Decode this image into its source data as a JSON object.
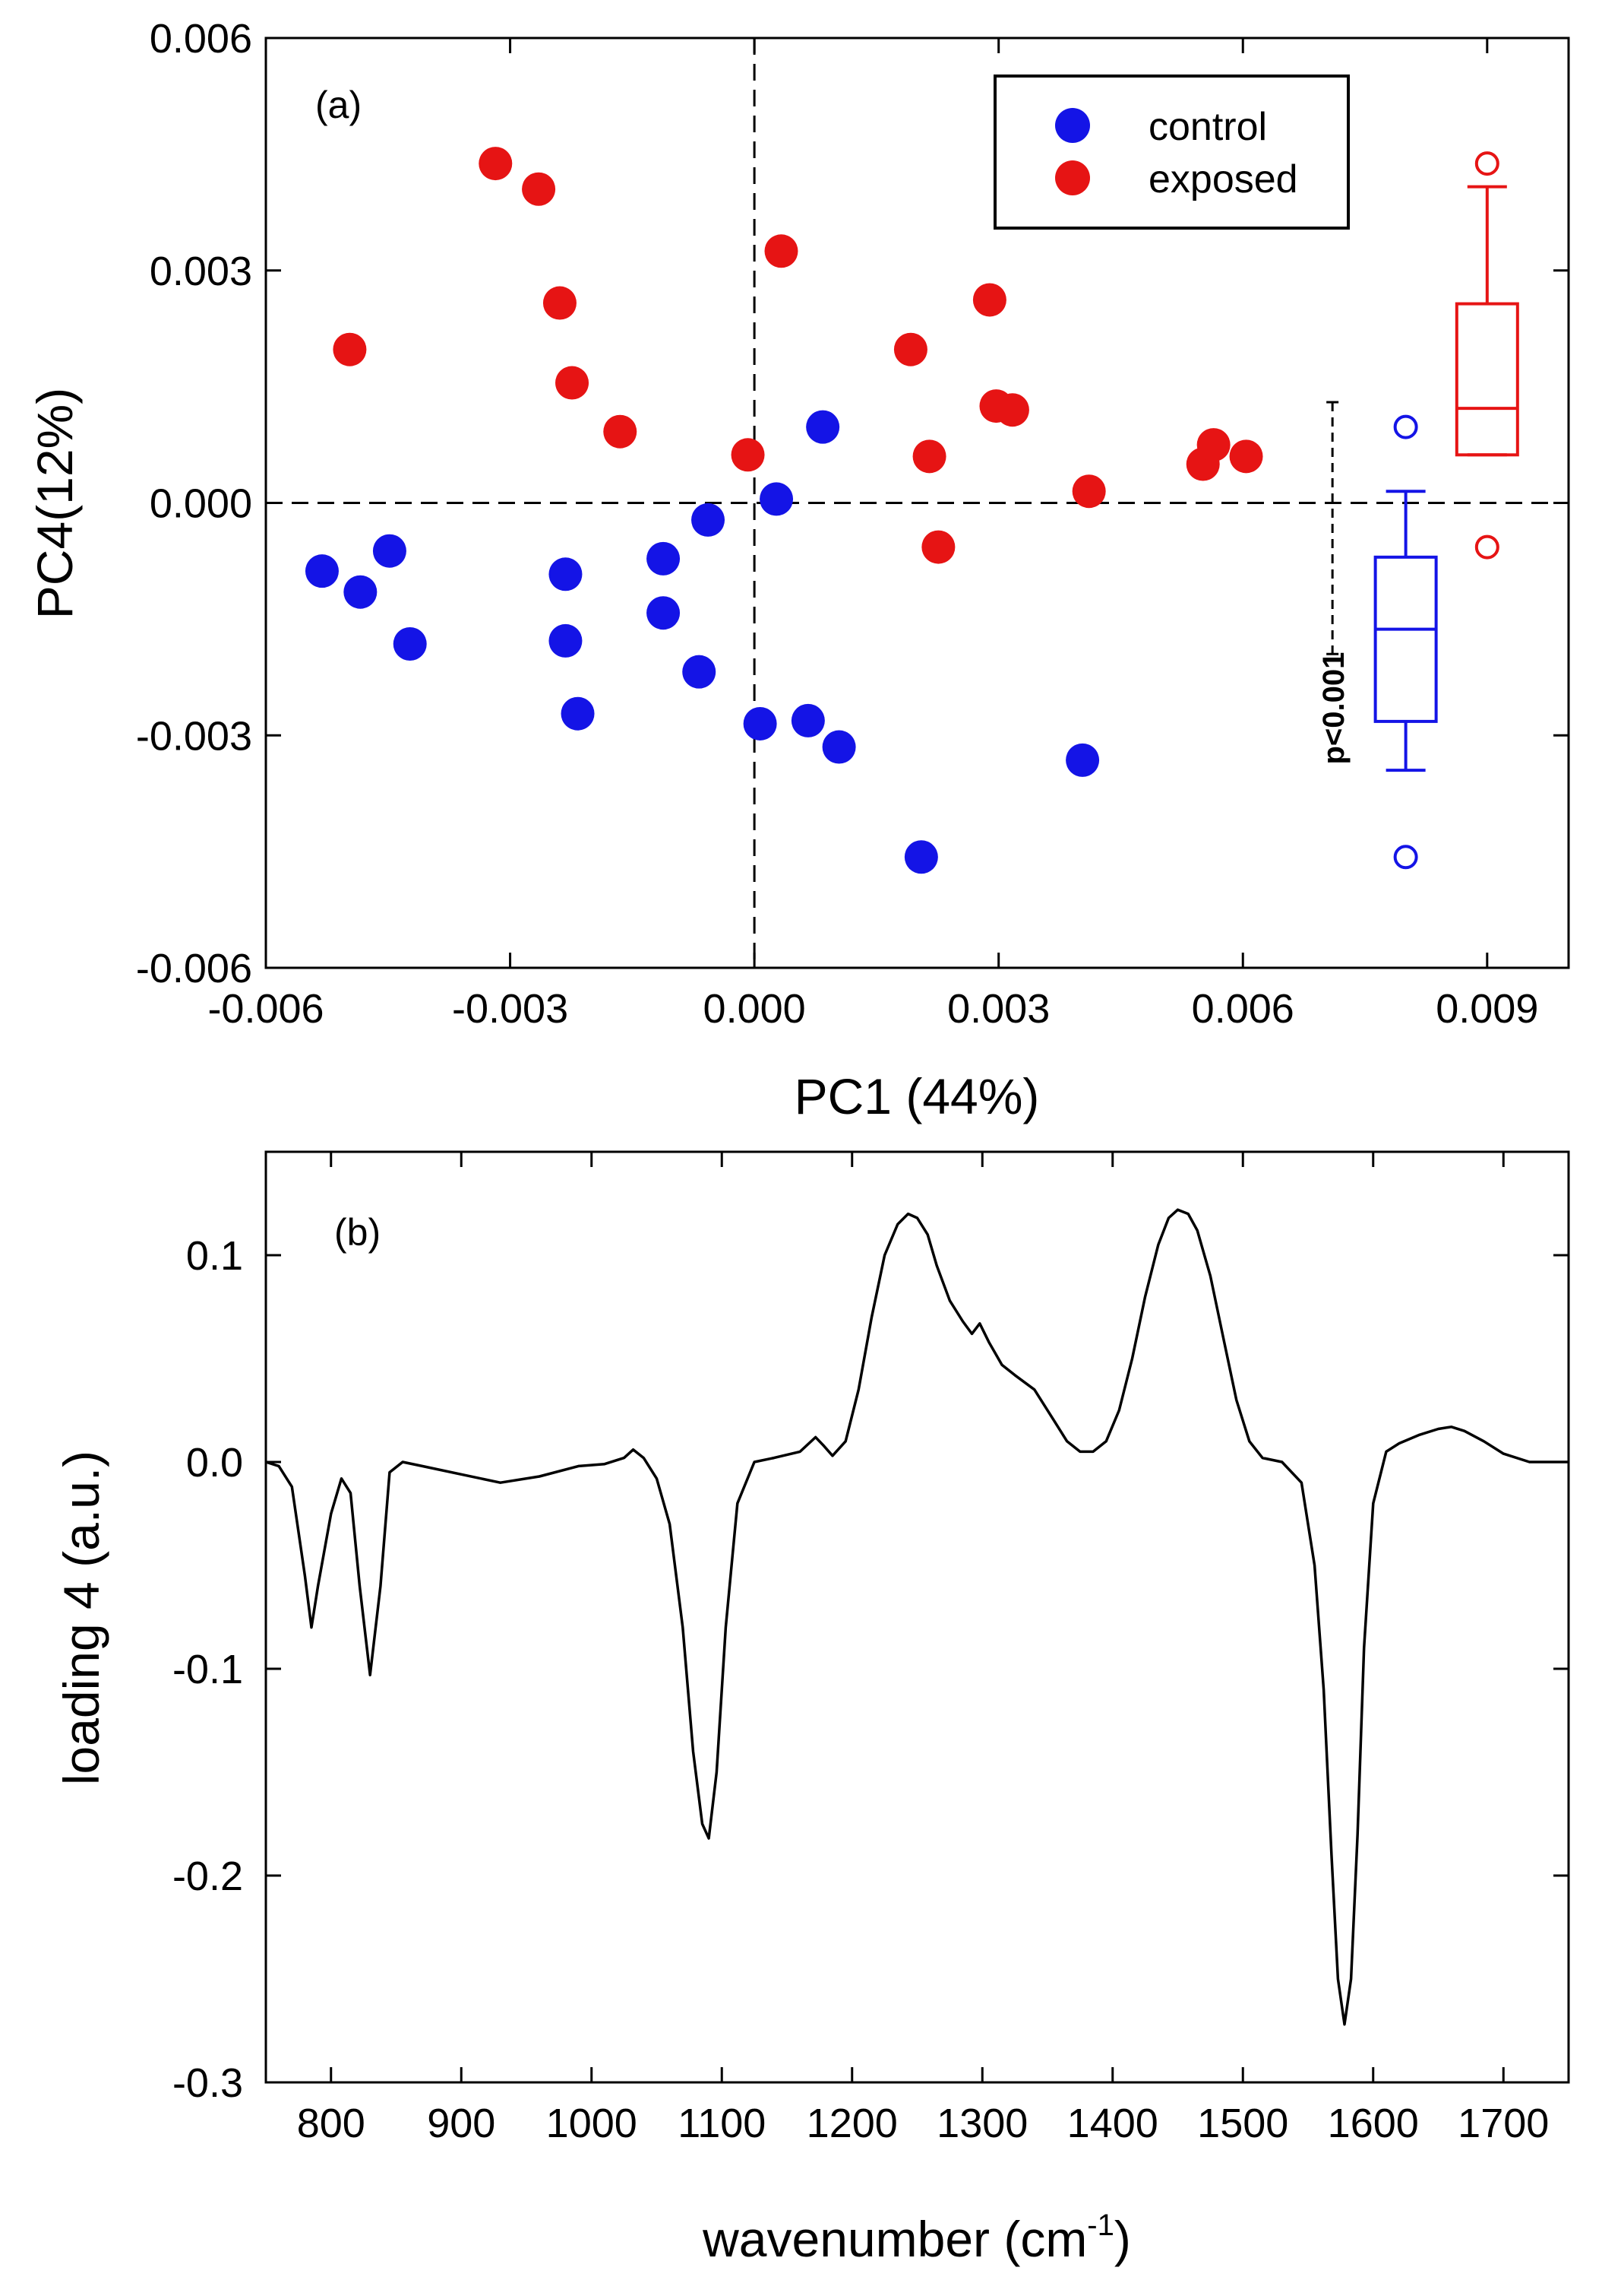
{
  "chart_data": [
    {
      "type": "scatter",
      "panel_label": "(a)",
      "xlabel": "PC1 (44%)",
      "ylabel": "PC4(12%)",
      "xlim": [
        -0.006,
        0.01
      ],
      "ylim": [
        -0.006,
        0.006
      ],
      "x_ticks": [
        -0.006,
        -0.003,
        0.0,
        0.003,
        0.006,
        0.009
      ],
      "x_tick_labels": [
        "-0.006",
        "-0.003",
        "0.000",
        "0.003",
        "0.006",
        "0.009"
      ],
      "y_ticks": [
        -0.006,
        -0.003,
        0.0,
        0.003,
        0.006
      ],
      "y_tick_labels": [
        "-0.006",
        "-0.003",
        "0.000",
        "0.003",
        "0.006"
      ],
      "reference_lines": {
        "x": 0.0,
        "y": 0.0,
        "style": "dashed"
      },
      "legend_position": "top-right",
      "series": [
        {
          "name": "control",
          "color": "#1414e6",
          "points": [
            [
              -0.00531,
              -0.00088
            ],
            [
              -0.00484,
              -0.00115
            ],
            [
              -0.00448,
              -0.00062
            ],
            [
              -0.00423,
              -0.00182
            ],
            [
              -0.00232,
              -0.00092
            ],
            [
              -0.00232,
              -0.00178
            ],
            [
              -0.00217,
              -0.00272
            ],
            [
              -0.00112,
              -0.00072
            ],
            [
              -0.00112,
              -0.00142
            ],
            [
              -0.00068,
              -0.00218
            ],
            [
              -0.00057,
              -0.00022
            ],
            [
              7e-05,
              -0.00285
            ],
            [
              0.00027,
              5e-05
            ],
            [
              0.00084,
              0.00098
            ],
            [
              0.00066,
              -0.00281
            ],
            [
              0.00104,
              -0.00315
            ],
            [
              0.00205,
              -0.00457
            ],
            [
              0.00403,
              -0.00332
            ]
          ]
        },
        {
          "name": "exposed",
          "color": "#e61414",
          "points": [
            [
              -0.00497,
              0.00198
            ],
            [
              -0.00318,
              0.00438
            ],
            [
              -0.00265,
              0.00405
            ],
            [
              -0.00239,
              0.00258
            ],
            [
              -0.00224,
              0.00155
            ],
            [
              -0.00165,
              0.00092
            ],
            [
              -8e-05,
              0.00062
            ],
            [
              0.00033,
              0.00325
            ],
            [
              0.00192,
              0.00198
            ],
            [
              0.00215,
              0.0006
            ],
            [
              0.00226,
              -0.00057
            ],
            [
              0.00289,
              0.00262
            ],
            [
              0.00297,
              0.00125
            ],
            [
              0.00317,
              0.0012
            ],
            [
              0.00411,
              0.00015
            ],
            [
              0.00551,
              0.0005
            ],
            [
              0.00564,
              0.00075
            ],
            [
              0.00604,
              0.0006
            ]
          ]
        }
      ],
      "boxplots": [
        {
          "name": "control",
          "x": 0.008,
          "color": "#1414e6",
          "whisker_low": -0.00345,
          "q1": -0.00282,
          "median": -0.00163,
          "q3": -0.0007,
          "whisker_high": 0.00015,
          "outliers": [
            0.00098,
            -0.00457
          ]
        },
        {
          "name": "exposed",
          "x": 0.009,
          "color": "#e61414",
          "whisker_low": 0.00062,
          "q1": 0.00062,
          "median": 0.00122,
          "q3": 0.00257,
          "whisker_high": 0.00408,
          "outliers": [
            0.00438,
            -0.00057
          ]
        }
      ],
      "significance": {
        "label": "p<0.001",
        "x": 0.0071,
        "y_low": -0.00195,
        "y_high": 0.0013
      }
    },
    {
      "type": "line",
      "panel_label": "(b)",
      "xlabel": "wavenumber (cm",
      "xlabel_superscript": "-1",
      "xlabel_suffix": ")",
      "ylabel": "loading 4 (a.u.)",
      "xlim": [
        750,
        1750
      ],
      "ylim": [
        -0.3,
        0.15
      ],
      "x_ticks": [
        800,
        900,
        1000,
        1100,
        1200,
        1300,
        1400,
        1500,
        1600,
        1700
      ],
      "x_tick_labels": [
        "800",
        "900",
        "1000",
        "1100",
        "1200",
        "1300",
        "1400",
        "1500",
        "1600",
        "1700"
      ],
      "y_ticks": [
        -0.3,
        -0.2,
        -0.1,
        0.0,
        0.1
      ],
      "y_tick_labels": [
        "-0.3",
        "-0.2",
        "-0.1",
        "0.0",
        "0.1"
      ],
      "series": [
        {
          "name": "loading 4",
          "color": "#000000",
          "x": [
            750,
            760,
            770,
            780,
            785,
            790,
            800,
            808,
            815,
            822,
            830,
            838,
            845,
            855,
            870,
            900,
            930,
            960,
            990,
            1010,
            1025,
            1032,
            1040,
            1050,
            1060,
            1070,
            1078,
            1085,
            1090,
            1096,
            1103,
            1112,
            1125,
            1140,
            1160,
            1172,
            1178,
            1185,
            1195,
            1205,
            1215,
            1225,
            1235,
            1243,
            1250,
            1258,
            1265,
            1275,
            1285,
            1292,
            1298,
            1305,
            1315,
            1325,
            1340,
            1355,
            1365,
            1375,
            1385,
            1395,
            1405,
            1415,
            1425,
            1435,
            1443,
            1450,
            1458,
            1465,
            1475,
            1485,
            1495,
            1505,
            1515,
            1530,
            1545,
            1555,
            1562,
            1568,
            1573,
            1578,
            1583,
            1588,
            1593,
            1600,
            1610,
            1620,
            1635,
            1650,
            1660,
            1670,
            1685,
            1700,
            1720,
            1750
          ],
          "y": [
            0.0,
            -0.002,
            -0.012,
            -0.055,
            -0.08,
            -0.06,
            -0.025,
            -0.008,
            -0.015,
            -0.06,
            -0.103,
            -0.06,
            -0.005,
            0.0,
            -0.002,
            -0.006,
            -0.01,
            -0.007,
            -0.002,
            -0.001,
            0.002,
            0.006,
            0.002,
            -0.008,
            -0.03,
            -0.08,
            -0.14,
            -0.175,
            -0.182,
            -0.15,
            -0.08,
            -0.02,
            0.0,
            0.002,
            0.005,
            0.012,
            0.008,
            0.003,
            0.01,
            0.035,
            0.07,
            0.1,
            0.115,
            0.12,
            0.118,
            0.11,
            0.095,
            0.078,
            0.068,
            0.062,
            0.067,
            0.058,
            0.047,
            0.042,
            0.035,
            0.02,
            0.01,
            0.005,
            0.005,
            0.01,
            0.025,
            0.05,
            0.08,
            0.105,
            0.118,
            0.122,
            0.12,
            0.112,
            0.09,
            0.06,
            0.03,
            0.01,
            0.002,
            0.0,
            -0.01,
            -0.05,
            -0.11,
            -0.19,
            -0.25,
            -0.272,
            -0.25,
            -0.18,
            -0.09,
            -0.02,
            0.005,
            0.009,
            0.013,
            0.016,
            0.017,
            0.015,
            0.01,
            0.004,
            0.0,
            0.0
          ]
        }
      ]
    }
  ]
}
